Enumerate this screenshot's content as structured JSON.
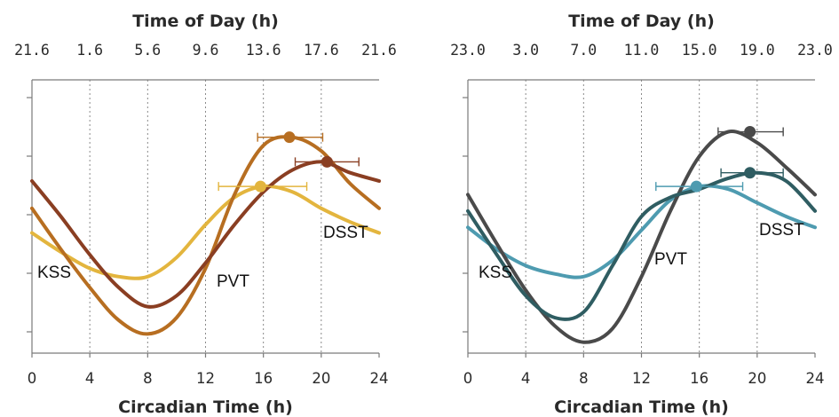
{
  "chart_data": [
    {
      "type": "line",
      "top_axis_title": "Time of Day (h)",
      "top_tick_labels": [
        "21.6",
        "1.6",
        "5.6",
        "9.6",
        "13.6",
        "17.6",
        "21.6"
      ],
      "xlabel": "Circadian Time (h)",
      "x_ticks": [
        "0",
        "4",
        "8",
        "12",
        "16",
        "20",
        "24"
      ],
      "xlim": [
        0,
        24
      ],
      "ylim": [
        0,
        1
      ],
      "grid": "vertical dotted at 4, 8, 12, 16, 20",
      "series": [
        {
          "name": "KSS",
          "color": "#e3b53e",
          "x": [
            0,
            2,
            4,
            6,
            8,
            10,
            12,
            14,
            16,
            18,
            20,
            22,
            24
          ],
          "y": [
            0.44,
            0.37,
            0.31,
            0.28,
            0.28,
            0.35,
            0.47,
            0.57,
            0.61,
            0.59,
            0.53,
            0.48,
            0.44
          ],
          "peak": {
            "x": 15.8,
            "y": 0.61,
            "err_low": 12.9,
            "err_high": 19.0
          }
        },
        {
          "name": "PVT",
          "color": "#b76e21",
          "x": [
            0,
            2,
            4,
            6,
            8,
            10,
            12,
            14,
            16,
            18,
            20,
            22,
            24
          ],
          "y": [
            0.53,
            0.38,
            0.24,
            0.12,
            0.07,
            0.13,
            0.31,
            0.58,
            0.76,
            0.79,
            0.74,
            0.62,
            0.53
          ],
          "peak": {
            "x": 17.8,
            "y": 0.79,
            "err_low": 15.6,
            "err_high": 20.1
          }
        },
        {
          "name": "DSST",
          "color": "#8a3e22",
          "x": [
            0,
            2,
            4,
            6,
            8,
            10,
            12,
            14,
            16,
            18,
            20,
            22,
            24
          ],
          "y": [
            0.63,
            0.5,
            0.36,
            0.24,
            0.17,
            0.21,
            0.33,
            0.47,
            0.59,
            0.67,
            0.7,
            0.66,
            0.63
          ],
          "peak": {
            "x": 20.4,
            "y": 0.7,
            "err_low": 18.2,
            "err_high": 22.6
          }
        }
      ]
    },
    {
      "type": "line",
      "top_axis_title": "Time of Day (h)",
      "top_tick_labels": [
        "23.0",
        "3.0",
        "7.0",
        "11.0",
        "15.0",
        "19.0",
        "23.0"
      ],
      "xlabel": "Circadian Time (h)",
      "x_ticks": [
        "0",
        "4",
        "8",
        "12",
        "16",
        "20",
        "24"
      ],
      "xlim": [
        0,
        24
      ],
      "ylim": [
        0,
        1
      ],
      "grid": "vertical dotted at 4, 8, 12, 16, 20",
      "series": [
        {
          "name": "KSS",
          "color": "#4e9bb0",
          "x": [
            0,
            2,
            4,
            6,
            8,
            10,
            12,
            14,
            16,
            18,
            20,
            22,
            24
          ],
          "y": [
            0.46,
            0.38,
            0.32,
            0.29,
            0.28,
            0.34,
            0.45,
            0.56,
            0.61,
            0.6,
            0.55,
            0.5,
            0.46
          ],
          "peak": {
            "x": 15.8,
            "y": 0.61,
            "err_low": 13.0,
            "err_high": 19.0
          }
        },
        {
          "name": "PVT",
          "color": "#4a4a4a",
          "x": [
            0,
            2,
            4,
            6,
            8,
            10,
            12,
            14,
            16,
            18,
            20,
            22,
            24
          ],
          "y": [
            0.58,
            0.4,
            0.23,
            0.1,
            0.04,
            0.09,
            0.28,
            0.52,
            0.72,
            0.81,
            0.77,
            0.68,
            0.58
          ],
          "peak": {
            "x": 19.5,
            "y": 0.81,
            "err_low": 17.3,
            "err_high": 21.8
          }
        },
        {
          "name": "DSST",
          "color": "#2f5d62",
          "x": [
            0,
            2,
            4,
            6,
            8,
            10,
            12,
            14,
            16,
            18,
            20,
            22,
            24
          ],
          "y": [
            0.52,
            0.36,
            0.21,
            0.13,
            0.15,
            0.32,
            0.5,
            0.57,
            0.6,
            0.64,
            0.66,
            0.63,
            0.52
          ],
          "peak": {
            "x": 19.5,
            "y": 0.66,
            "err_low": 17.5,
            "err_high": 21.8
          }
        }
      ]
    }
  ],
  "curve_labels": [
    {
      "panel": 0,
      "text": "KSS"
    },
    {
      "panel": 0,
      "text": "PVT"
    },
    {
      "panel": 0,
      "text": "DSST"
    },
    {
      "panel": 1,
      "text": "KSS"
    },
    {
      "panel": 1,
      "text": "PVT"
    },
    {
      "panel": 1,
      "text": "DSST"
    }
  ]
}
